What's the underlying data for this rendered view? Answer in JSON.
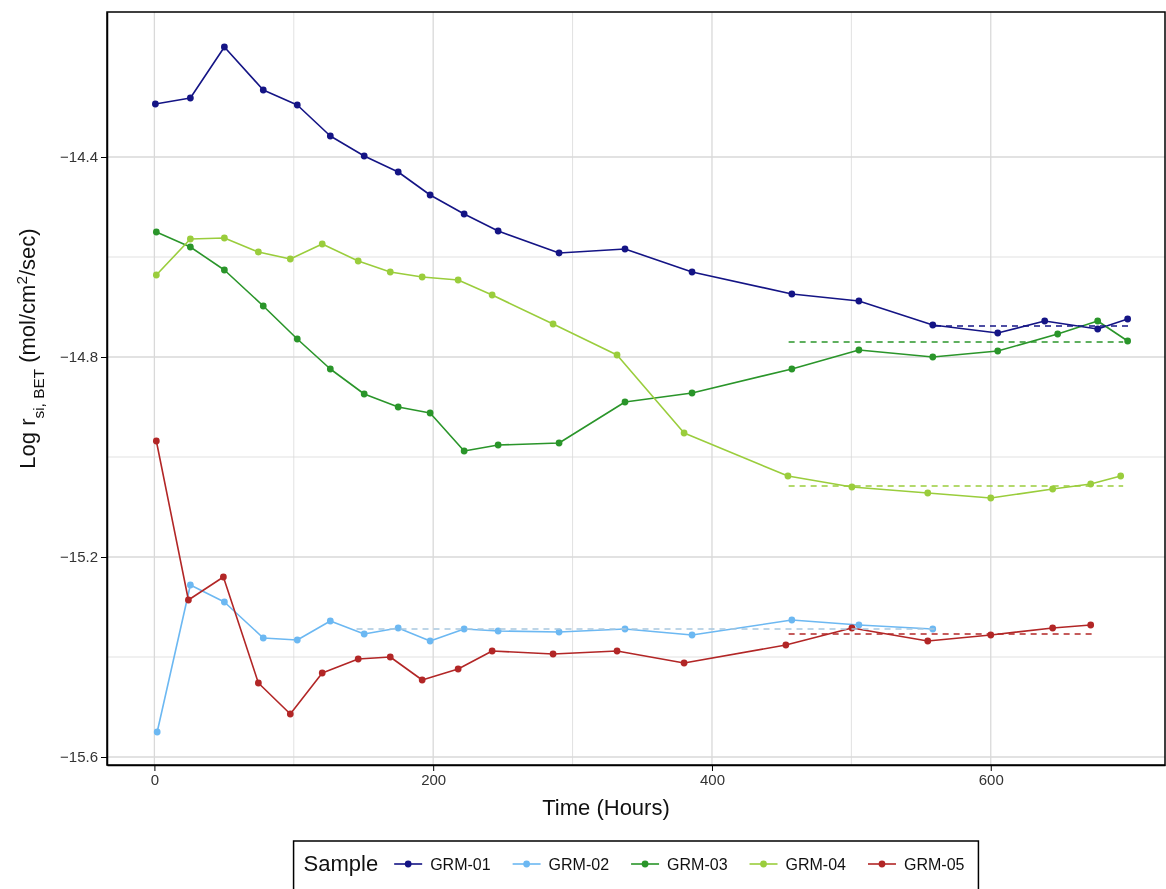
{
  "chart_data": {
    "type": "line",
    "xlabel": "Time (Hours)",
    "ylabel": "Log r$_{si, BET}$ (mol/cm$^{2}$/sec)",
    "legend_title": "Sample",
    "xlim": [
      -34,
      725
    ],
    "ylim": [
      -15.616,
      -14.11
    ],
    "xticks": [
      0,
      200,
      400,
      600
    ],
    "yticks": [
      -14.4,
      -14.8,
      -15.2,
      -15.6
    ],
    "grid": true,
    "legend": "bottom",
    "marker": "circle",
    "line_style": "solid",
    "series": [
      {
        "name": "GRM-01",
        "color": "#141485",
        "x": [
          0.7,
          25.8,
          50.2,
          78.1,
          102.5,
          126.2,
          150.5,
          174.9,
          197.8,
          222.2,
          246.6,
          290.3,
          337.6,
          385.7,
          457.3,
          505.4,
          558.4,
          605,
          638.7,
          676.7,
          698.2
        ],
        "values": [
          -14.294,
          -14.282,
          -14.18,
          -14.266,
          -14.296,
          -14.358,
          -14.398,
          -14.43,
          -14.476,
          -14.514,
          -14.548,
          -14.592,
          -14.584,
          -14.63,
          -14.674,
          -14.688,
          -14.736,
          -14.752,
          -14.728,
          -14.744,
          -14.724
        ]
      },
      {
        "name": "GRM-02",
        "color": "#6cb8f2",
        "x": [
          2,
          25.8,
          50.2,
          78.1,
          102.5,
          126.2,
          150.5,
          174.9,
          197.8,
          222.2,
          246.6,
          290.3,
          337.6,
          385.7,
          457.3,
          505.4,
          558.4
        ],
        "values": [
          -15.55,
          -15.256,
          -15.29,
          -15.362,
          -15.366,
          -15.328,
          -15.354,
          -15.342,
          -15.368,
          -15.344,
          -15.348,
          -15.35,
          -15.344,
          -15.356,
          -15.326,
          -15.336,
          -15.344
        ]
      },
      {
        "name": "GRM-03",
        "color": "#2a952a",
        "x": [
          1.4,
          25.8,
          50.2,
          78.1,
          102.5,
          126.2,
          150.5,
          174.9,
          197.8,
          222.2,
          246.6,
          290.3,
          337.6,
          385.7,
          457.3,
          505.4,
          558.4,
          605,
          648,
          676.7,
          698.2
        ],
        "values": [
          -14.55,
          -14.58,
          -14.626,
          -14.698,
          -14.764,
          -14.824,
          -14.874,
          -14.9,
          -14.912,
          -14.988,
          -14.976,
          -14.972,
          -14.89,
          -14.872,
          -14.824,
          -14.786,
          -14.8,
          -14.788,
          -14.754,
          -14.728,
          -14.768
        ]
      },
      {
        "name": "GRM-04",
        "color": "#9acd3c",
        "x": [
          1.4,
          25.8,
          50.2,
          74.6,
          97.5,
          120.4,
          146.2,
          169.2,
          192.1,
          217.9,
          242.3,
          286,
          331.9,
          380,
          454.5,
          500.4,
          554.8,
          600,
          644.4,
          671.7,
          693.2
        ],
        "values": [
          -14.636,
          -14.564,
          -14.562,
          -14.59,
          -14.604,
          -14.574,
          -14.608,
          -14.63,
          -14.64,
          -14.646,
          -14.676,
          -14.734,
          -14.796,
          -14.952,
          -15.038,
          -15.06,
          -15.072,
          -15.082,
          -15.064,
          -15.054,
          -15.038
        ]
      },
      {
        "name": "GRM-05",
        "color": "#b22626",
        "x": [
          1.4,
          24.4,
          49.5,
          74.6,
          97.5,
          120.4,
          146.2,
          169.2,
          192.1,
          217.9,
          242.3,
          286,
          331.9,
          380,
          453,
          500.4,
          554.8,
          600,
          644.4,
          671.7
        ],
        "values": [
          -14.968,
          -15.286,
          -15.24,
          -15.452,
          -15.514,
          -15.432,
          -15.404,
          -15.4,
          -15.446,
          -15.424,
          -15.388,
          -15.394,
          -15.388,
          -15.412,
          -15.376,
          -15.342,
          -15.368,
          -15.356,
          -15.342,
          -15.336
        ]
      },
      {
        "type": "line",
        "color": "#141485",
        "line_style": "dashed",
        "marker": "none",
        "x": [
          560,
          700
        ],
        "values": [
          -14.738,
          -14.738
        ]
      },
      {
        "type": "line",
        "color": "#2a952a",
        "line_style": "dashed",
        "marker": "none",
        "x": [
          455,
          695
        ],
        "values": [
          -14.77,
          -14.77
        ]
      },
      {
        "type": "line",
        "color": "#9acd3c",
        "line_style": "dashed",
        "marker": "none",
        "x": [
          455,
          695
        ],
        "values": [
          -15.058,
          -15.058
        ]
      },
      {
        "type": "line",
        "color": "#a8c8e0",
        "line_style": "dashed",
        "marker": "none",
        "x": [
          145,
          560
        ],
        "values": [
          -15.344,
          -15.344
        ]
      },
      {
        "type": "line",
        "color": "#b22626",
        "line_style": "dashed",
        "marker": "none",
        "x": [
          455,
          675
        ],
        "values": [
          -15.354,
          -15.354
        ]
      }
    ]
  }
}
